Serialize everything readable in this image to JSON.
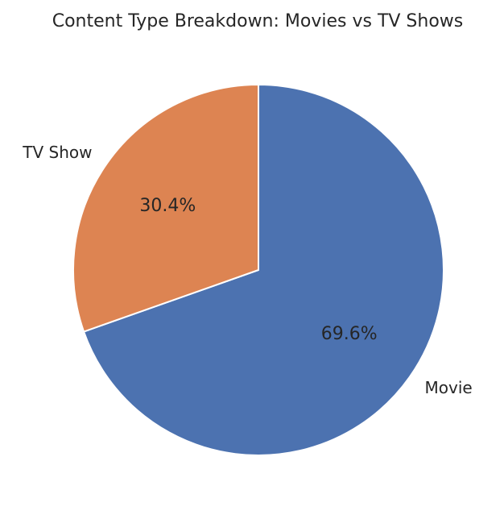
{
  "chart_data": {
    "type": "pie",
    "title": "Content Type Breakdown: Movies vs TV Shows",
    "slices": [
      {
        "label": "Movie",
        "value": 69.6,
        "pct_label": "69.6%",
        "color": "#4c72b0"
      },
      {
        "label": "TV Show",
        "value": 30.4,
        "pct_label": "30.4%",
        "color": "#dd8452"
      }
    ],
    "start_angle_deg": 90,
    "direction": "clockwise"
  }
}
